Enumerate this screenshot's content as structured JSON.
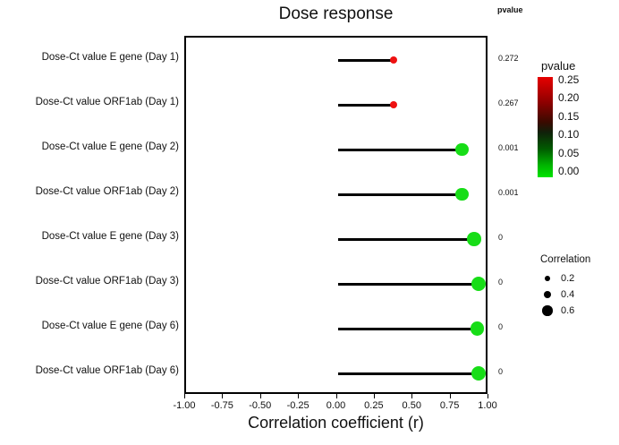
{
  "chart_data": {
    "type": "lollipop",
    "title": "Dose response",
    "xlabel": "Correlation coefficient  (r)",
    "xlim": [
      -1.0,
      1.0
    ],
    "x_ticks": [
      -1.0,
      -0.75,
      -0.5,
      -0.25,
      0.0,
      0.25,
      0.5,
      0.75,
      1.0
    ],
    "x_tick_labels": [
      "-1.00",
      "-0.75",
      "-0.50",
      "-0.25",
      "0.00",
      "0.25",
      "0.50",
      "0.75",
      "1.00"
    ],
    "pvalue_column_header": "pvalue",
    "grid": false,
    "rows": [
      {
        "label": "Dose-Ct value E gene (Day 1)",
        "correlation": 0.37,
        "pvalue": "0.272",
        "color": "#ee1111"
      },
      {
        "label": "Dose-Ct value ORF1ab (Day 1)",
        "correlation": 0.37,
        "pvalue": "0.267",
        "color": "#ee1111"
      },
      {
        "label": "Dose-Ct value E gene (Day 2)",
        "correlation": 0.82,
        "pvalue": "0.001",
        "color": "#17dd17"
      },
      {
        "label": "Dose-Ct value ORF1ab (Day 2)",
        "correlation": 0.82,
        "pvalue": "0.001",
        "color": "#17dd17"
      },
      {
        "label": "Dose-Ct value E gene (Day 3)",
        "correlation": 0.9,
        "pvalue": "0",
        "color": "#17dd17"
      },
      {
        "label": "Dose-Ct value ORF1ab (Day 3)",
        "correlation": 0.93,
        "pvalue": "0",
        "color": "#17dd17"
      },
      {
        "label": "Dose-Ct value E gene (Day 6)",
        "correlation": 0.92,
        "pvalue": "0",
        "color": "#17dd17"
      },
      {
        "label": "Dose-Ct value ORF1ab (Day 6)",
        "correlation": 0.93,
        "pvalue": "0",
        "color": "#17dd17"
      }
    ],
    "legend": {
      "pvalue": {
        "title": "pvalue",
        "ticks": [
          "0.25",
          "0.20",
          "0.15",
          "0.10",
          "0.05",
          "0.00"
        ],
        "high_color": "#e60000",
        "low_color": "#00e400"
      },
      "correlation": {
        "title": "Correlation",
        "sizes": [
          "0.2",
          "0.4",
          "0.6"
        ]
      }
    }
  }
}
